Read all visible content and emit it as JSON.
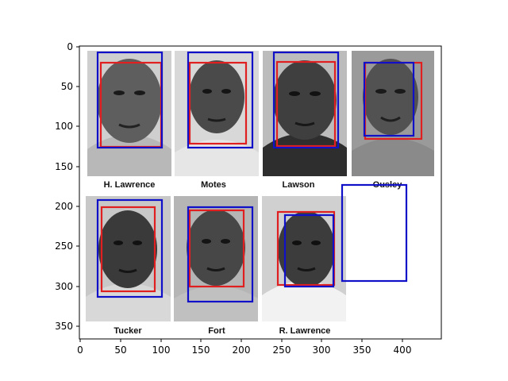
{
  "axes": {
    "x_ticks": [
      "0",
      "50",
      "100",
      "150",
      "200",
      "250",
      "300",
      "350",
      "400"
    ],
    "y_ticks": [
      "0",
      "50",
      "100",
      "150",
      "200",
      "250",
      "300",
      "350"
    ]
  },
  "photos": [
    {
      "caption": "H. Lawrence",
      "skin": "#5e5e5e",
      "bg": "#cfcfcf",
      "shirt": "#b8b8b8"
    },
    {
      "caption": "Motes",
      "skin": "#4a4a4a",
      "bg": "#d8d8d8",
      "shirt": "#e6e6e6"
    },
    {
      "caption": "Lawson",
      "skin": "#3f3f3f",
      "bg": "#bcbcbc",
      "shirt": "#2e2e2e"
    },
    {
      "caption": "Ousley",
      "skin": "#525252",
      "bg": "#9a9a9a",
      "shirt": "#8a8a8a"
    },
    {
      "caption": "Tucker",
      "skin": "#3a3a3a",
      "bg": "#c8c8c8",
      "shirt": "#d8d8d8"
    },
    {
      "caption": "Fort",
      "skin": "#474747",
      "bg": "#b5b5b5",
      "shirt": "#c0c0c0"
    },
    {
      "caption": "R. Lawrence",
      "skin": "#3c3c3c",
      "bg": "#d0d0d0",
      "shirt": "#f2f2f2"
    }
  ],
  "box_colors": {
    "red": "#e02020",
    "blue": "#1010c8"
  }
}
